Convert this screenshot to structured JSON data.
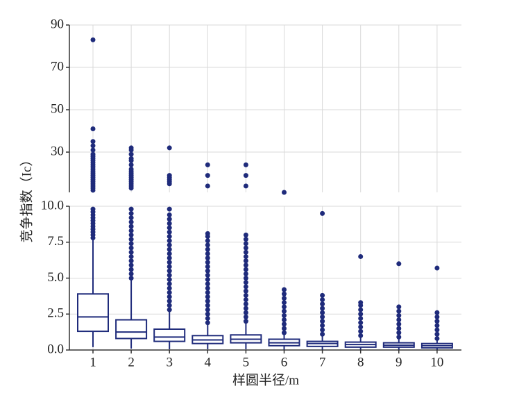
{
  "chart_data": {
    "type": "box",
    "y_label": "竞争指数（Ic）",
    "x_label": "样圆半径/m",
    "color": "#1f2b7b",
    "grid": true,
    "categories": [
      "1",
      "2",
      "3",
      "4",
      "5",
      "6",
      "7",
      "8",
      "9",
      "10"
    ],
    "ylim": [
      0,
      10
    ],
    "yticks": [
      {
        "value": 0,
        "label": "0.0"
      },
      {
        "value": 2.5,
        "label": "2.5"
      },
      {
        "value": 5,
        "label": "5.0"
      },
      {
        "value": 7.5,
        "label": "7.5"
      },
      {
        "value": 10,
        "label": "10.0"
      }
    ],
    "ylim_upper": [
      11,
      90
    ],
    "yticks_upper": [
      30,
      50,
      70,
      90
    ],
    "boxes": [
      {
        "whislo": 0.2,
        "q1": 1.3,
        "med": 2.3,
        "q3": 3.9,
        "whishi": 7.7,
        "fliers": [
          7.8,
          8.0,
          8.2,
          8.4,
          8.6,
          8.8,
          9.0,
          9.2,
          9.4,
          9.6,
          9.8,
          83,
          41,
          35,
          33,
          31,
          29,
          28,
          27,
          26,
          25,
          24,
          23,
          22,
          21,
          20,
          19,
          18,
          17,
          16,
          15,
          14,
          13,
          12
        ]
      },
      {
        "whislo": 0.1,
        "q1": 0.8,
        "med": 1.25,
        "q3": 2.1,
        "whishi": 4.9,
        "fliers": [
          5.0,
          5.3,
          5.6,
          5.9,
          6.2,
          6.5,
          6.8,
          7.1,
          7.4,
          7.7,
          8.0,
          8.3,
          8.6,
          8.9,
          9.2,
          9.5,
          9.8,
          32,
          31,
          29,
          27,
          26,
          24,
          22,
          21,
          20,
          19,
          18,
          17,
          16,
          15,
          14,
          13
        ]
      },
      {
        "whislo": 0.05,
        "q1": 0.6,
        "med": 0.9,
        "q3": 1.45,
        "whishi": 2.7,
        "fliers": [
          2.8,
          3.1,
          3.4,
          3.7,
          4.0,
          4.3,
          4.6,
          4.9,
          5.2,
          5.5,
          5.8,
          6.1,
          6.4,
          6.7,
          7.0,
          7.3,
          7.6,
          7.9,
          8.2,
          8.5,
          8.8,
          9.1,
          9.4,
          9.8,
          32,
          19,
          18,
          17,
          16,
          15
        ]
      },
      {
        "whislo": 0.05,
        "q1": 0.45,
        "med": 0.7,
        "q3": 1.0,
        "whishi": 1.8,
        "fliers": [
          1.9,
          2.2,
          2.5,
          2.8,
          3.1,
          3.4,
          3.7,
          4.0,
          4.3,
          4.6,
          4.9,
          5.2,
          5.5,
          5.8,
          6.1,
          6.4,
          6.7,
          7.0,
          7.3,
          7.6,
          7.9,
          8.1,
          24,
          19,
          14
        ]
      },
      {
        "whislo": 0.05,
        "q1": 0.5,
        "med": 0.75,
        "q3": 1.05,
        "whishi": 1.9,
        "fliers": [
          2.0,
          2.3,
          2.6,
          2.9,
          3.2,
          3.5,
          3.8,
          4.1,
          4.4,
          4.7,
          5.0,
          5.3,
          5.6,
          5.9,
          6.2,
          6.5,
          6.8,
          7.1,
          7.4,
          7.7,
          8.0,
          24,
          19,
          14
        ]
      },
      {
        "whislo": 0.02,
        "q1": 0.3,
        "med": 0.5,
        "q3": 0.75,
        "whishi": 1.1,
        "fliers": [
          1.2,
          1.5,
          1.8,
          2.1,
          2.4,
          2.7,
          3.0,
          3.3,
          3.6,
          3.9,
          4.2,
          11
        ]
      },
      {
        "whislo": 0.02,
        "q1": 0.25,
        "med": 0.45,
        "q3": 0.6,
        "whishi": 1.0,
        "fliers": [
          1.1,
          1.4,
          1.7,
          2.0,
          2.3,
          2.6,
          2.9,
          3.2,
          3.5,
          3.8,
          9.5
        ]
      },
      {
        "whislo": 0.02,
        "q1": 0.2,
        "med": 0.38,
        "q3": 0.55,
        "whishi": 0.9,
        "fliers": [
          1.0,
          1.3,
          1.6,
          1.9,
          2.2,
          2.5,
          2.8,
          3.1,
          3.3,
          6.5
        ]
      },
      {
        "whislo": 0.02,
        "q1": 0.2,
        "med": 0.33,
        "q3": 0.5,
        "whishi": 0.8,
        "fliers": [
          0.9,
          1.2,
          1.5,
          1.8,
          2.1,
          2.4,
          2.7,
          3.0,
          6.0
        ]
      },
      {
        "whislo": 0.02,
        "q1": 0.15,
        "med": 0.3,
        "q3": 0.45,
        "whishi": 0.75,
        "fliers": [
          0.8,
          1.1,
          1.4,
          1.7,
          2.0,
          2.3,
          2.6,
          5.7
        ]
      }
    ]
  }
}
